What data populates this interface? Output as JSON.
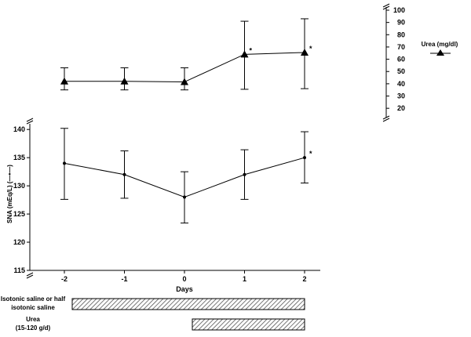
{
  "chart_data": {
    "type": "line",
    "xlabel": "Days",
    "x": [
      "-2",
      "-1",
      "0",
      "1",
      "2"
    ],
    "series": [
      {
        "name": "Urea (mg/dl)",
        "axis": "right",
        "marker": "triangle",
        "values": [
          42,
          42,
          41.5,
          64,
          65.5
        ],
        "err_low": [
          35,
          35,
          35,
          35.5,
          36
        ],
        "err_high": [
          53,
          53,
          53,
          91,
          93
        ],
        "significant": [
          false,
          false,
          false,
          true,
          true
        ]
      },
      {
        "name": "SNA (mEq/L)",
        "axis": "left",
        "marker": "dot",
        "values": [
          134,
          132,
          128,
          132,
          135
        ],
        "err_low": [
          127.6,
          127.8,
          123.4,
          127.6,
          130.5
        ],
        "err_high": [
          140.2,
          136.2,
          132.5,
          136.4,
          139.6
        ],
        "significant": [
          false,
          false,
          false,
          false,
          true
        ]
      }
    ],
    "left_axis": {
      "label": "SNA (mEq/L) (—•—)",
      "ticks": [
        "140",
        "135",
        "130",
        "125",
        "120",
        "115"
      ],
      "ylim": [
        115,
        141
      ]
    },
    "right_axis": {
      "ticks": [
        "100",
        "90",
        "80",
        "70",
        "60",
        "50",
        "40",
        "30",
        "20"
      ],
      "ylim": [
        15,
        100
      ]
    },
    "legend": {
      "label": "Urea (mg/dl)",
      "placement": "top-right"
    },
    "significance_marker": "*",
    "treatment_bars": [
      {
        "label_lines": [
          "Isotonic saline or half",
          "isotonic saline"
        ],
        "from": -2,
        "to": 2
      },
      {
        "label_lines": [
          "Urea",
          "(15-120 g/d)"
        ],
        "from": 0,
        "to": 2
      }
    ]
  }
}
